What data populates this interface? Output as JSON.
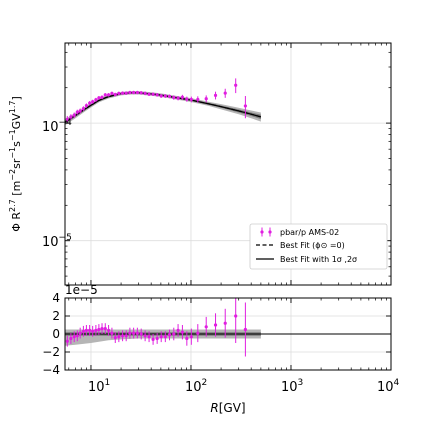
{
  "chart_data": [
    {
      "id": "main",
      "type": "scatter",
      "xscale": "log",
      "yscale": "log",
      "xlim": [
        5.5,
        10000
      ],
      "ylim": [
        4.2e-06,
        0.00048
      ],
      "ylabel": "Φ R^{2.7} [m^{-2}sr^{-1}s^{-1}GV^{1.7}]",
      "ylabel_parts": {
        "phi": "Φ R",
        "exp1": "2.7",
        "u0": " [m",
        "u1": "−2",
        "u2": "sr",
        "u3": "−1",
        "u4": "s",
        "u5": "−1",
        "u6": "GV",
        "u7": "1.7",
        "u8": "]"
      },
      "y_ticks": [
        {
          "value": 0.0001,
          "base": "10",
          "exp": "−4"
        },
        {
          "value": 1e-05,
          "base": "10",
          "exp": "−5"
        }
      ],
      "grid": true,
      "legend_position": "lower-right",
      "legend": [
        {
          "label": "pbar/p AMS-02",
          "marker": "errorbar",
          "color": "#e01ee0"
        },
        {
          "label": "Best Fit (ϕ⊙ =0)",
          "line": "dashed",
          "color": "#000000"
        },
        {
          "label": "Best Fit with 1σ ,2σ",
          "line": "solid",
          "color": "#000000"
        }
      ],
      "series": [
        {
          "name": "pbar/p AMS-02",
          "color": "#e01ee0",
          "x": [
            5.8,
            6.3,
            6.8,
            7.3,
            7.8,
            8.4,
            9.0,
            9.7,
            10.4,
            11.2,
            12.0,
            12.9,
            13.9,
            15.0,
            16.2,
            17.5,
            19.0,
            20.7,
            22.5,
            24.5,
            26.7,
            29.1,
            31.8,
            34.8,
            38.1,
            41.8,
            45.9,
            50.4,
            55.4,
            61.0,
            67.3,
            74.3,
            82.1,
            90.9,
            100.8,
            117.0,
            142.0,
            176.0,
            220.0,
            280.0,
            350.0
          ],
          "y": [
            0.000108,
            0.000113,
            0.000117,
            0.000124,
            0.000127,
            0.000133,
            0.000141,
            0.000148,
            0.000152,
            0.000158,
            0.000164,
            0.000166,
            0.000174,
            0.000174,
            0.000179,
            0.000175,
            0.000179,
            0.00018,
            0.00018,
            0.000182,
            0.000182,
            0.000182,
            0.000181,
            0.000179,
            0.000176,
            0.000176,
            0.000174,
            0.00017,
            0.00017,
            0.000169,
            0.000165,
            0.000163,
            0.000166,
            0.00016,
            0.000159,
            0.000159,
            0.000161,
            0.000172,
            0.00018,
            0.00021,
            0.00014
          ],
          "yerr": [
            7e-06,
            6e-06,
            6e-06,
            6e-06,
            6e-06,
            6e-06,
            6e-06,
            6e-06,
            6e-06,
            6e-06,
            6e-06,
            6e-06,
            6e-06,
            6e-06,
            6e-06,
            6e-06,
            6e-06,
            6e-06,
            6e-06,
            6e-06,
            6e-06,
            6e-06,
            6e-06,
            6e-06,
            6e-06,
            6e-06,
            6e-06,
            6e-06,
            6e-06,
            6e-06,
            7e-06,
            7e-06,
            8e-06,
            8e-06,
            9e-06,
            1e-05,
            1.1e-05,
            1.3e-05,
            1.6e-05,
            3e-05,
            3e-05
          ]
        },
        {
          "name": "Best Fit (ϕ⊙ =0)",
          "line": "dashed",
          "color": "#000000",
          "x": [
            5.5,
            7,
            9,
            12,
            15,
            20,
            25,
            30,
            40,
            50,
            70,
            100,
            150,
            200,
            300,
            400,
            500
          ],
          "y": [
            0.000102,
            0.000116,
            0.000134,
            0.000156,
            0.000168,
            0.000178,
            0.000181,
            0.000181,
            0.000177,
            0.000173,
            0.000165,
            0.000157,
            0.000146,
            0.000138,
            0.000127,
            0.000119,
            0.000113
          ]
        },
        {
          "name": "Best Fit with 1σ ,2σ",
          "line": "solid",
          "color": "#000000",
          "x": [
            5.5,
            7,
            9,
            12,
            15,
            20,
            25,
            30,
            40,
            50,
            70,
            100,
            150,
            200,
            300,
            400,
            500
          ],
          "y": [
            0.000102,
            0.000116,
            0.000134,
            0.000156,
            0.000168,
            0.000178,
            0.000181,
            0.000181,
            0.000177,
            0.000173,
            0.000165,
            0.000157,
            0.000146,
            0.000138,
            0.000127,
            0.000119,
            0.000113
          ],
          "band_1sigma": [
            3e-06,
            3e-06,
            3e-06,
            3e-06,
            3e-06,
            3e-06,
            3e-06,
            3e-06,
            3e-06,
            3e-06,
            3e-06,
            3e-06,
            3e-06,
            3e-06,
            4e-06,
            4e-06,
            5e-06
          ],
          "band_2sigma": [
            6e-06,
            6e-06,
            6e-06,
            6e-06,
            6e-06,
            6e-06,
            6e-06,
            6e-06,
            6e-06,
            6e-06,
            6e-06,
            6e-06,
            6e-06,
            7e-06,
            8e-06,
            9e-06,
            1e-05
          ]
        }
      ]
    },
    {
      "id": "residual",
      "type": "scatter",
      "xscale": "log",
      "xlim": [
        5.5,
        10000
      ],
      "ylim": [
        -4e-05,
        4e-05
      ],
      "offset_text": "1e−5",
      "y_ticks": [
        {
          "value": 4e-05,
          "label": "4"
        },
        {
          "value": 2e-05,
          "label": "2"
        },
        {
          "value": 0,
          "label": "0"
        },
        {
          "value": -2e-05,
          "label": "−2"
        },
        {
          "value": -4e-05,
          "label": "−4"
        }
      ],
      "x_ticks": [
        {
          "value": 10,
          "base": "10",
          "exp": "1"
        },
        {
          "value": 100,
          "base": "10",
          "exp": "2"
        },
        {
          "value": 1000,
          "base": "10",
          "exp": "3"
        },
        {
          "value": 10000,
          "base": "10",
          "exp": "4"
        }
      ],
      "xlabel_parts": {
        "R": "R",
        "unit": "[GV]"
      },
      "grid": true,
      "reference_line": 0,
      "series": [
        {
          "name": "pbar/p AMS-02",
          "color": "#e01ee0",
          "x": [
            5.8,
            6.3,
            6.8,
            7.3,
            7.8,
            8.4,
            9.0,
            9.7,
            10.4,
            11.2,
            12.0,
            12.9,
            13.9,
            15.0,
            16.2,
            17.5,
            19.0,
            20.7,
            22.5,
            24.5,
            26.7,
            29.1,
            31.8,
            34.8,
            38.1,
            41.8,
            45.9,
            50.4,
            55.4,
            61.0,
            67.3,
            74.3,
            82.1,
            90.9,
            100.8,
            117.0,
            142.0,
            176.0,
            220.0,
            280.0,
            350.0
          ],
          "y": [
            -8e-06,
            -5e-06,
            -3e-06,
            -2e-06,
            1e-06,
            3e-06,
            4e-06,
            4e-06,
            3e-06,
            4e-06,
            5e-06,
            6e-06,
            6e-06,
            4e-06,
            1e-06,
            -4e-06,
            -3e-06,
            -2e-06,
            -2e-06,
            1e-06,
            1e-06,
            1e-06,
            0.0,
            -2e-06,
            -3e-06,
            -6e-06,
            -5e-06,
            -3e-06,
            -3e-06,
            -1e-06,
            0.0,
            4e-06,
            2e-06,
            -5e-06,
            -3e-06,
            1e-06,
            8e-06,
            1e-05,
            1.2e-05,
            2e-05,
            5e-06
          ],
          "yerr": [
            6e-06,
            6e-06,
            6e-06,
            6e-06,
            6e-06,
            6e-06,
            6e-06,
            6e-06,
            6e-06,
            6e-06,
            6e-06,
            6e-06,
            6e-06,
            6e-06,
            6e-06,
            6e-06,
            6e-06,
            6e-06,
            6e-06,
            6e-06,
            6e-06,
            6e-06,
            6e-06,
            6e-06,
            6e-06,
            6e-06,
            6e-06,
            6e-06,
            6e-06,
            6e-06,
            7e-06,
            7e-06,
            8e-06,
            8e-06,
            9e-06,
            1e-05,
            1.1e-05,
            1.3e-05,
            1.6e-05,
            3e-05,
            3e-05
          ]
        },
        {
          "name": "Best Fit with 1σ ,2σ",
          "x": [
            5.5,
            7,
            10,
            15,
            20,
            30,
            50,
            100,
            200,
            500
          ],
          "band_1sigma": [
            2e-06,
            2e-06,
            2e-06,
            2e-06,
            2e-06,
            2e-06,
            2e-06,
            2e-06,
            2e-06,
            2e-06
          ],
          "band_2sigma_upper": [
            5e-06,
            5e-06,
            5e-06,
            5e-06,
            5e-06,
            5e-06,
            5e-06,
            5e-06,
            5e-06,
            5e-06
          ],
          "band_2sigma_lower": [
            -1.3e-05,
            -1.2e-05,
            -1e-05,
            -7e-06,
            -6e-06,
            -5e-06,
            -5e-06,
            -5e-06,
            -5e-06,
            -5e-06
          ]
        }
      ]
    }
  ]
}
